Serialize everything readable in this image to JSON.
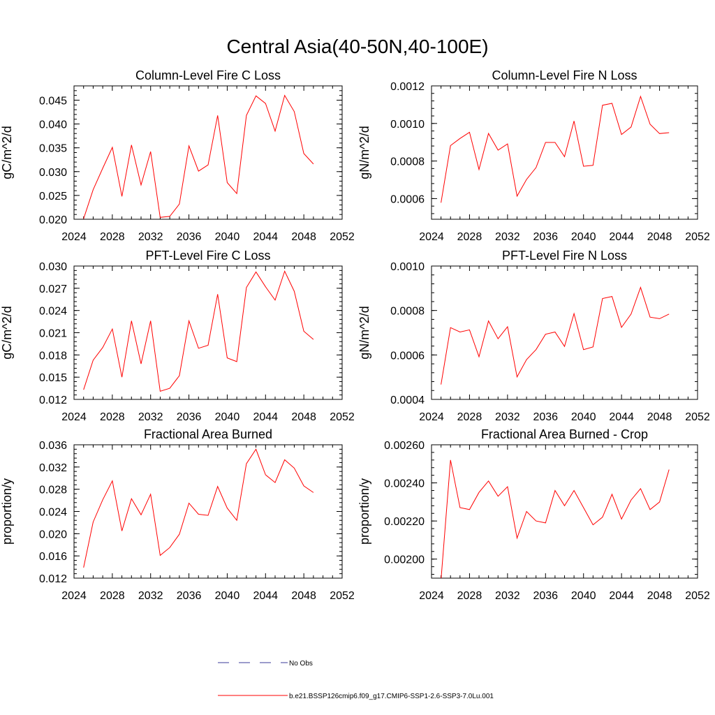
{
  "title": "Central Asia(40-50N,40-100E)",
  "legend": {
    "obs_label": "No Obs",
    "obs_color": "#3a3a9a",
    "model_label": "b.e21.BSSP126cmip6.f09_g17.CMIP6-SSP1-2.6-SSP3-7.0Lu.001",
    "model_color": "#ff0000"
  },
  "chart_data": [
    {
      "type": "line",
      "title": "Column-Level Fire C Loss",
      "ylabel": "gC/m^2/d",
      "xlim": [
        2024,
        2052
      ],
      "xticks": [
        2024,
        2028,
        2032,
        2036,
        2040,
        2044,
        2048,
        2052
      ],
      "ylim": [
        0.02,
        0.048
      ],
      "yticks": [
        0.02,
        0.025,
        0.03,
        0.035,
        0.04,
        0.045
      ],
      "ytick_labels": [
        "0.020",
        "0.025",
        "0.030",
        "0.035",
        "0.040",
        "0.045"
      ],
      "x": [
        2025,
        2026,
        2027,
        2028,
        2029,
        2030,
        2031,
        2032,
        2033,
        2034,
        2035,
        2036,
        2037,
        2038,
        2039,
        2040,
        2041,
        2042,
        2043,
        2044,
        2045,
        2046,
        2047,
        2048,
        2049
      ],
      "series": [
        {
          "values": [
            0.0201,
            0.0262,
            0.0307,
            0.0351,
            0.0248,
            0.0356,
            0.0272,
            0.0342,
            0.0204,
            0.0206,
            0.0232,
            0.0354,
            0.0301,
            0.0314,
            0.0418,
            0.0277,
            0.0254,
            0.0418,
            0.0459,
            0.0443,
            0.0385,
            0.046,
            0.0426,
            0.0338,
            0.0316
          ]
        }
      ]
    },
    {
      "type": "line",
      "title": "Column-Level Fire N Loss",
      "ylabel": "gN/m^2/d",
      "xlim": [
        2024,
        2052
      ],
      "xticks": [
        2024,
        2028,
        2032,
        2036,
        2040,
        2044,
        2048,
        2052
      ],
      "ylim": [
        0.00049,
        0.0012
      ],
      "yticks": [
        0.0006,
        0.0008,
        0.001,
        0.0012
      ],
      "ytick_labels": [
        "0.0006",
        "0.0008",
        "0.0010",
        "0.0012"
      ],
      "x": [
        2025,
        2026,
        2027,
        2028,
        2029,
        2030,
        2031,
        2032,
        2033,
        2034,
        2035,
        2036,
        2037,
        2038,
        2039,
        2040,
        2041,
        2042,
        2043,
        2044,
        2045,
        2046,
        2047,
        2048,
        2049
      ],
      "series": [
        {
          "values": [
            0.000578,
            0.000882,
            0.00092,
            0.000953,
            0.000755,
            0.000947,
            0.000858,
            0.000891,
            0.000613,
            0.000702,
            0.000765,
            0.000899,
            0.000899,
            0.000823,
            0.001013,
            0.000772,
            0.000777,
            0.001097,
            0.001107,
            0.000941,
            0.000981,
            0.001144,
            0.000996,
            0.000946,
            0.000951
          ]
        }
      ]
    },
    {
      "type": "line",
      "title": "PFT-Level Fire C Loss",
      "ylabel": "gC/m^2/d",
      "xlim": [
        2024,
        2052
      ],
      "xticks": [
        2024,
        2028,
        2032,
        2036,
        2040,
        2044,
        2048,
        2052
      ],
      "ylim": [
        0.012,
        0.03
      ],
      "yticks": [
        0.012,
        0.015,
        0.018,
        0.021,
        0.024,
        0.027,
        0.03
      ],
      "ytick_labels": [
        "0.012",
        "0.015",
        "0.018",
        "0.021",
        "0.024",
        "0.027",
        "0.030"
      ],
      "x": [
        2025,
        2026,
        2027,
        2028,
        2029,
        2030,
        2031,
        2032,
        2033,
        2034,
        2035,
        2036,
        2037,
        2038,
        2039,
        2040,
        2041,
        2042,
        2043,
        2044,
        2045,
        2046,
        2047,
        2048,
        2049
      ],
      "series": [
        {
          "values": [
            0.0133,
            0.0173,
            0.019,
            0.0215,
            0.015,
            0.0226,
            0.0168,
            0.0226,
            0.0131,
            0.0135,
            0.0152,
            0.0226,
            0.0189,
            0.0193,
            0.0262,
            0.0176,
            0.0171,
            0.0271,
            0.0292,
            0.0272,
            0.0254,
            0.0293,
            0.0266,
            0.0212,
            0.0201
          ]
        }
      ]
    },
    {
      "type": "line",
      "title": "PFT-Level Fire N Loss",
      "ylabel": "gN/m^2/d",
      "xlim": [
        2024,
        2052
      ],
      "xticks": [
        2024,
        2028,
        2032,
        2036,
        2040,
        2044,
        2048,
        2052
      ],
      "ylim": [
        0.0004,
        0.001
      ],
      "yticks": [
        0.0004,
        0.0006,
        0.0008,
        0.001
      ],
      "ytick_labels": [
        "0.0004",
        "0.0006",
        "0.0008",
        "0.0010"
      ],
      "x": [
        2025,
        2026,
        2027,
        2028,
        2029,
        2030,
        2031,
        2032,
        2033,
        2034,
        2035,
        2036,
        2037,
        2038,
        2039,
        2040,
        2041,
        2042,
        2043,
        2044,
        2045,
        2046,
        2047,
        2048,
        2049
      ],
      "series": [
        {
          "values": [
            0.000467,
            0.000723,
            0.000703,
            0.000713,
            0.000592,
            0.000753,
            0.000673,
            0.000727,
            0.000501,
            0.000579,
            0.000624,
            0.000693,
            0.000703,
            0.000638,
            0.000786,
            0.000624,
            0.000636,
            0.000854,
            0.000863,
            0.000724,
            0.000784,
            0.000904,
            0.00077,
            0.000763,
            0.000784
          ]
        }
      ]
    },
    {
      "type": "line",
      "title": "Fractional Area Burned",
      "ylabel": "proportion/y",
      "xlim": [
        2024,
        2052
      ],
      "xticks": [
        2024,
        2028,
        2032,
        2036,
        2040,
        2044,
        2048,
        2052
      ],
      "ylim": [
        0.012,
        0.036
      ],
      "yticks": [
        0.012,
        0.016,
        0.02,
        0.024,
        0.028,
        0.032,
        0.036
      ],
      "ytick_labels": [
        "0.012",
        "0.016",
        "0.020",
        "0.024",
        "0.028",
        "0.032",
        "0.036"
      ],
      "x": [
        2025,
        2026,
        2027,
        2028,
        2029,
        2030,
        2031,
        2032,
        2033,
        2034,
        2035,
        2036,
        2037,
        2038,
        2039,
        2040,
        2041,
        2042,
        2043,
        2044,
        2045,
        2046,
        2047,
        2048,
        2049
      ],
      "series": [
        {
          "values": [
            0.0139,
            0.0221,
            0.0261,
            0.0295,
            0.0205,
            0.0263,
            0.0234,
            0.0271,
            0.0161,
            0.0175,
            0.0199,
            0.0255,
            0.0235,
            0.0233,
            0.0285,
            0.0246,
            0.0224,
            0.0326,
            0.0352,
            0.0306,
            0.0292,
            0.0333,
            0.0318,
            0.0286,
            0.0274
          ]
        }
      ]
    },
    {
      "type": "line",
      "title": "Fractional Area Burned - Crop",
      "ylabel": "proportion/y",
      "xlim": [
        2024,
        2052
      ],
      "xticks": [
        2024,
        2028,
        2032,
        2036,
        2040,
        2044,
        2048,
        2052
      ],
      "ylim": [
        0.0019,
        0.0026
      ],
      "yticks": [
        0.002,
        0.0022,
        0.0024,
        0.0026
      ],
      "ytick_labels": [
        "0.00200",
        "0.00220",
        "0.00240",
        "0.00260"
      ],
      "x": [
        2025,
        2026,
        2027,
        2028,
        2029,
        2030,
        2031,
        2032,
        2033,
        2034,
        2035,
        2036,
        2037,
        2038,
        2039,
        2040,
        2041,
        2042,
        2043,
        2044,
        2045,
        2046,
        2047,
        2048,
        2049
      ],
      "series": [
        {
          "values": [
            0.00189,
            0.00252,
            0.00227,
            0.00226,
            0.00235,
            0.00241,
            0.00233,
            0.00238,
            0.00211,
            0.00225,
            0.0022,
            0.00219,
            0.00236,
            0.00228,
            0.00236,
            0.00227,
            0.00218,
            0.00222,
            0.00234,
            0.00221,
            0.00231,
            0.00237,
            0.00226,
            0.0023,
            0.00247
          ]
        }
      ]
    }
  ]
}
